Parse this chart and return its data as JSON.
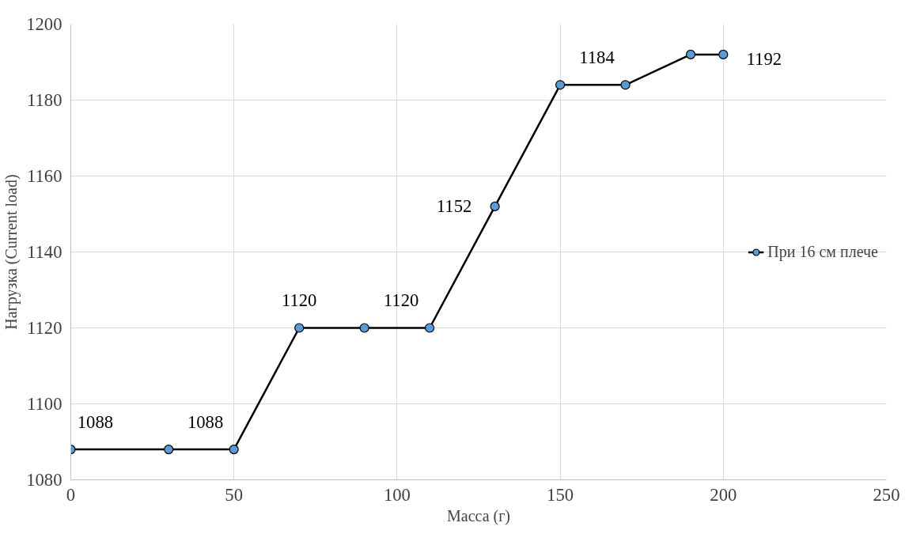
{
  "chart_data": {
    "type": "line",
    "xlabel": "Масса (г)",
    "ylabel": "Нагрузка (Current load)",
    "x": [
      0,
      30,
      50,
      70,
      90,
      110,
      130,
      150,
      170,
      190,
      200
    ],
    "series": [
      {
        "name": "При 16 см плече",
        "color": "#5b9bd5",
        "values": [
          1088,
          1088,
          1088,
          1120,
          1120,
          1120,
          1152,
          1184,
          1184,
          1192,
          1192
        ],
        "value_labels": [
          "1088",
          null,
          "1088",
          "1120",
          null,
          "1120",
          "1152",
          null,
          "1184",
          null,
          "1192"
        ]
      }
    ],
    "xlim": [
      0,
      250
    ],
    "xticks": [
      0,
      50,
      100,
      150,
      200,
      250
    ],
    "ylim": [
      1080,
      1200
    ],
    "yticks": [
      1080,
      1100,
      1120,
      1140,
      1160,
      1180,
      1200
    ],
    "grid": true,
    "legend": "right",
    "marker": "circle",
    "line_style": "solid"
  }
}
